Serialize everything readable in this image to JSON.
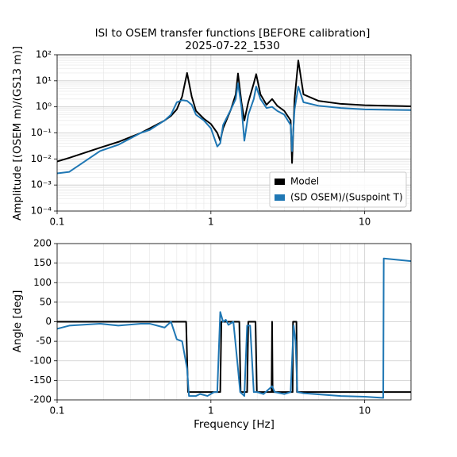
{
  "chart_data": [
    {
      "type": "line",
      "title": "ISI to OSEM transfer functions [BEFORE calibration]",
      "subtitle": "2025-07-22_1530",
      "ylabel": "Amplitude [(OSEM m)/(GS13 m)]",
      "xscale": "log",
      "yscale": "log",
      "xlim": [
        0.1,
        20
      ],
      "xticks": [
        0.1,
        1,
        10
      ],
      "ylim": [
        0.0001,
        100
      ],
      "yticks": [
        {
          "value": 0.0001,
          "label": "10⁻⁴"
        },
        {
          "value": 0.001,
          "label": "10⁻³"
        },
        {
          "value": 0.01,
          "label": "10⁻²"
        },
        {
          "value": 0.1,
          "label": "10⁻¹"
        },
        {
          "value": 1,
          "label": "10⁰"
        },
        {
          "value": 10,
          "label": "10¹"
        },
        {
          "value": 100,
          "label": "10²"
        }
      ],
      "grid": true,
      "minor_grid": true,
      "legend": "lower right",
      "x": [
        0.1,
        0.12,
        0.19,
        0.25,
        0.35,
        0.4,
        0.5,
        0.55,
        0.6,
        0.65,
        0.7,
        0.75,
        0.8,
        0.9,
        1.0,
        1.1,
        1.15,
        1.2,
        1.35,
        1.45,
        1.5,
        1.58,
        1.65,
        1.75,
        1.9,
        1.97,
        2.1,
        2.3,
        2.5,
        2.7,
        3.0,
        3.3,
        3.37,
        3.5,
        3.7,
        4,
        5,
        7,
        10,
        20
      ],
      "series": [
        {
          "name": "Model",
          "color": "#000000",
          "values": [
            0.008,
            0.011,
            0.027,
            0.045,
            0.1,
            0.15,
            0.3,
            0.45,
            0.8,
            2.5,
            20,
            2.5,
            0.7,
            0.35,
            0.22,
            0.1,
            0.05,
            0.15,
            0.8,
            3,
            19,
            1.5,
            0.3,
            1.5,
            8,
            18,
            3,
            1.2,
            2,
            1.1,
            0.7,
            0.3,
            0.007,
            2,
            60,
            3,
            1.7,
            1.3,
            1.15,
            1.05
          ]
        },
        {
          "name": "(SD OSEM)/(Suspoint T)",
          "color": "#1f77b4",
          "values": [
            0.0028,
            0.0032,
            0.02,
            0.035,
            0.1,
            0.13,
            0.3,
            0.5,
            1.5,
            1.8,
            1.7,
            1.2,
            0.5,
            0.3,
            0.15,
            0.03,
            0.04,
            0.2,
            0.8,
            2,
            8,
            1,
            0.05,
            0.5,
            2,
            6,
            2,
            0.9,
            1.0,
            0.7,
            0.5,
            0.2,
            0.02,
            0.8,
            6,
            1.5,
            1.1,
            0.9,
            0.8,
            0.75
          ]
        }
      ]
    },
    {
      "type": "line",
      "xlabel": "Frequency [Hz]",
      "ylabel": "Angle [deg]",
      "xscale": "log",
      "yscale": "linear",
      "xlim": [
        0.1,
        20
      ],
      "xticks": [
        0.1,
        1,
        10
      ],
      "ylim": [
        -200,
        200
      ],
      "yticks": [
        -200,
        -150,
        -100,
        -50,
        0,
        50,
        100,
        150,
        200
      ],
      "grid": true,
      "minor_grid": true,
      "series": [
        {
          "name": "Model",
          "color": "#000000",
          "x": [
            0.1,
            0.69,
            0.71,
            1.15,
            1.17,
            1.53,
            1.56,
            1.72,
            1.75,
            1.95,
            1.99,
            2.48,
            2.5,
            2.52,
            3.4,
            3.42,
            3.6,
            3.63,
            20
          ],
          "values": [
            0,
            0,
            -180,
            -180,
            0,
            0,
            -180,
            -180,
            0,
            0,
            -180,
            -180,
            0,
            -180,
            -180,
            0,
            0,
            -180,
            -180
          ]
        },
        {
          "name": "(SD OSEM)/(Suspoint T)",
          "color": "#1f77b4",
          "x": [
            0.1,
            0.12,
            0.19,
            0.25,
            0.35,
            0.4,
            0.5,
            0.55,
            0.6,
            0.65,
            0.7,
            0.72,
            0.8,
            0.85,
            0.95,
            1.05,
            1.1,
            1.15,
            1.2,
            1.25,
            1.3,
            1.4,
            1.5,
            1.55,
            1.65,
            1.72,
            1.8,
            1.9,
            2.0,
            2.2,
            2.5,
            2.6,
            3.0,
            3.3,
            3.45,
            3.55,
            3.65,
            4,
            7,
            10,
            13.2,
            13.3,
            20
          ],
          "values": [
            -18,
            -10,
            -5,
            -10,
            -5,
            -5,
            -15,
            0,
            -45,
            -50,
            -120,
            -190,
            -190,
            -185,
            -190,
            -180,
            -180,
            25,
            0,
            5,
            -8,
            0,
            -120,
            -180,
            -190,
            -10,
            -10,
            -180,
            -180,
            -185,
            -165,
            -180,
            -185,
            -180,
            -10,
            -50,
            -180,
            -183,
            -190,
            -192,
            -195,
            162,
            155
          ]
        }
      ]
    }
  ]
}
